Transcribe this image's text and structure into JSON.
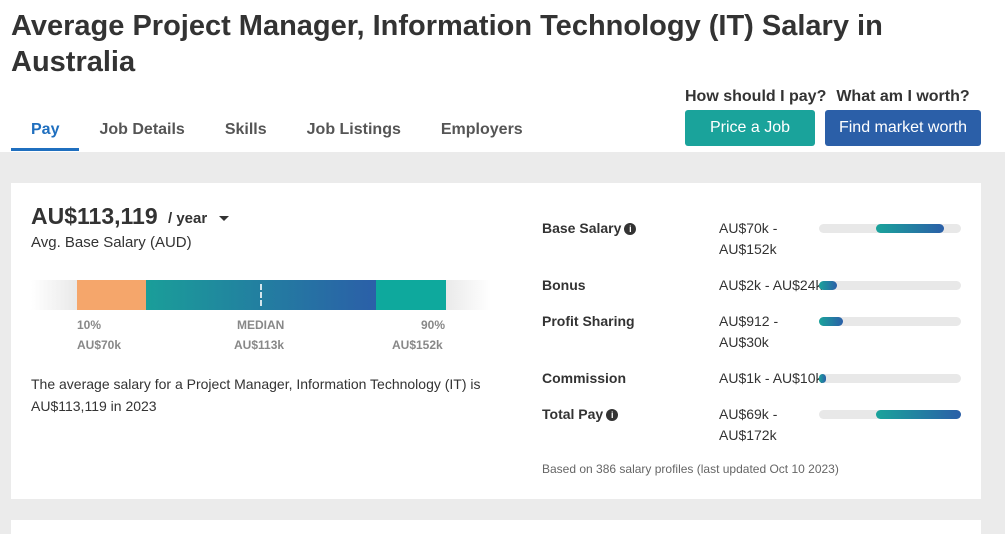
{
  "page": {
    "title": "Average Project Manager, Information Technology (IT) Salary in Australia"
  },
  "tabs": [
    {
      "label": "Pay",
      "active": true
    },
    {
      "label": "Job Details",
      "active": false
    },
    {
      "label": "Skills",
      "active": false
    },
    {
      "label": "Job Listings",
      "active": false
    },
    {
      "label": "Employers",
      "active": false
    }
  ],
  "cta": {
    "pay_question": "How should I pay?",
    "pay_button": "Price a Job",
    "worth_question": "What am I worth?",
    "worth_button": "Find market worth"
  },
  "salary": {
    "value": "AU$113,119",
    "period": "/ year",
    "label": "Avg. Base Salary (AUD)",
    "description": "The average salary for a Project Manager, Information Technology (IT) is AU$113,119 in 2023"
  },
  "range": {
    "p10_label": "10%",
    "p10_value": "AU$70k",
    "median_label": "MEDIAN",
    "median_value": "AU$113k",
    "p90_label": "90%",
    "p90_value": "AU$152k"
  },
  "breakdown": [
    {
      "label": "Base Salary",
      "info": true,
      "value": "AU$70k - AU$152k",
      "fill_start": 0.4,
      "fill_end": 0.88
    },
    {
      "label": "Bonus",
      "info": false,
      "value": "AU$2k - AU$24k",
      "fill_start": 0.0,
      "fill_end": 0.13
    },
    {
      "label": "Profit Sharing",
      "info": false,
      "value": "AU$912 - AU$30k",
      "fill_start": 0.0,
      "fill_end": 0.17
    },
    {
      "label": "Commission",
      "info": false,
      "value": "AU$1k - AU$10k",
      "fill_start": 0.0,
      "fill_end": 0.05
    },
    {
      "label": "Total Pay",
      "info": true,
      "value": "AU$69k - AU$172k",
      "fill_start": 0.4,
      "fill_end": 1.0
    }
  ],
  "footnote": "Based on 386 salary profiles (last updated Oct 10 2023)",
  "colors": {
    "accent_blue": "#1f6fbf",
    "teal": "#1aa39b",
    "blue": "#2b5fa8",
    "orange": "#f5a66b"
  }
}
